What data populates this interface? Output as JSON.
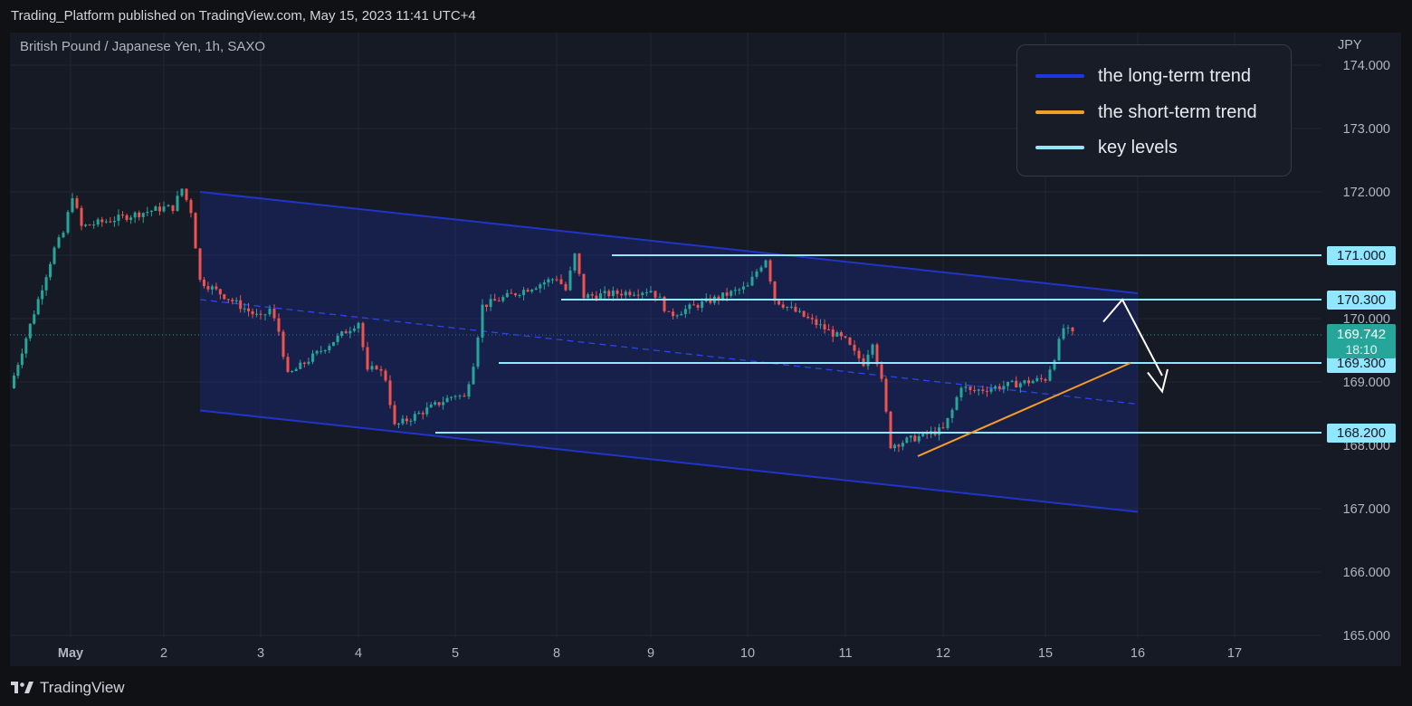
{
  "header": {
    "publish_line": "Trading_Platform published on TradingView.com, May 15, 2023 11:41 UTC+4"
  },
  "symbol_line": "British Pound / Japanese Yen, 1h, SAXO",
  "footer": {
    "brand": "TradingView"
  },
  "legend": [
    {
      "label": "the long-term trend",
      "color": "#1f35e0"
    },
    {
      "label": "the short-term trend",
      "color": "#f59d25"
    },
    {
      "label": "key levels",
      "color": "#8fe8ff"
    }
  ],
  "chart_data": {
    "type": "candlestick",
    "instrument": "British Pound / Japanese Yen",
    "timeframe": "1h",
    "source": "SAXO",
    "currency_label": "JPY",
    "y_ticks": [
      "174.000",
      "173.000",
      "172.000",
      "171.000",
      "170.000",
      "169.000",
      "168.000",
      "167.000",
      "166.000",
      "165.000"
    ],
    "x_ticks": [
      "May",
      "2",
      "3",
      "4",
      "5",
      "8",
      "9",
      "10",
      "11",
      "12",
      "15",
      "16",
      "17"
    ],
    "ylim": [
      165.0,
      174.5
    ],
    "key_levels": [
      171.0,
      170.3,
      169.3,
      168.2
    ],
    "level_labels": [
      "171.000",
      "170.300",
      "169.300",
      "168.200"
    ],
    "last_price": "169.742",
    "countdown": "18:10",
    "channel": {
      "upper": {
        "from": [
          "May 2",
          172.0
        ],
        "to": [
          "May 16",
          170.4
        ]
      },
      "lower": {
        "from": [
          "May 2",
          168.55
        ],
        "to": [
          "May 16",
          166.95
        ]
      },
      "mid": {
        "from": [
          "May 2",
          170.3
        ],
        "to": [
          "May 16",
          168.65
        ]
      }
    },
    "short_term_trendline": {
      "from": [
        "May 11",
        167.9
      ],
      "to": [
        "May 15",
        169.3
      ]
    },
    "projection_arrow": {
      "points": [
        [
          "May 15",
          169.75
        ],
        [
          "May 15",
          170.25
        ],
        [
          "May 16",
          168.85
        ]
      ]
    },
    "candles_path": [
      [
        "Apr 28",
        168.9
      ],
      [
        "May 1",
        171.1
      ],
      [
        "May 1",
        171.35
      ],
      [
        "May 1",
        171.95
      ],
      [
        "May 1",
        171.45
      ],
      [
        "May 2",
        171.75
      ],
      [
        "May 2",
        171.75
      ],
      [
        "May 2",
        172.05
      ],
      [
        "May 2",
        171.7
      ],
      [
        "May 2",
        170.6
      ],
      [
        "May 3",
        170.0
      ],
      [
        "May 3",
        170.15
      ],
      [
        "May 3",
        169.8
      ],
      [
        "May 3",
        169.1
      ],
      [
        "May 4",
        169.95
      ],
      [
        "May 4",
        169.15
      ],
      [
        "May 4",
        169.25
      ],
      [
        "May 4",
        169.05
      ],
      [
        "May 4",
        168.3
      ],
      [
        "May 5",
        168.8
      ],
      [
        "May 5",
        168.75
      ],
      [
        "May 5",
        169.3
      ],
      [
        "May 5",
        170.2
      ],
      [
        "May 8",
        170.65
      ],
      [
        "May 8",
        170.45
      ],
      [
        "May 8",
        171.0
      ],
      [
        "May 8",
        170.35
      ],
      [
        "May 9",
        170.45
      ],
      [
        "May 9",
        170.3
      ],
      [
        "May 9",
        170.05
      ],
      [
        "May 10",
        170.5
      ],
      [
        "May 10",
        170.75
      ],
      [
        "May 10",
        170.95
      ],
      [
        "May 10",
        170.3
      ],
      [
        "May 11",
        169.65
      ],
      [
        "May 11",
        169.45
      ],
      [
        "May 11",
        169.3
      ],
      [
        "May 11",
        169.65
      ],
      [
        "May 11",
        169.0
      ],
      [
        "May 11",
        168.0
      ],
      [
        "May 12",
        168.25
      ],
      [
        "May 12",
        168.55
      ],
      [
        "May 12",
        168.95
      ],
      [
        "May 12",
        168.85
      ],
      [
        "May 15",
        169.05
      ],
      [
        "May 15",
        169.4
      ],
      [
        "May 15",
        169.85
      ],
      [
        "May 15",
        169.75
      ]
    ]
  }
}
